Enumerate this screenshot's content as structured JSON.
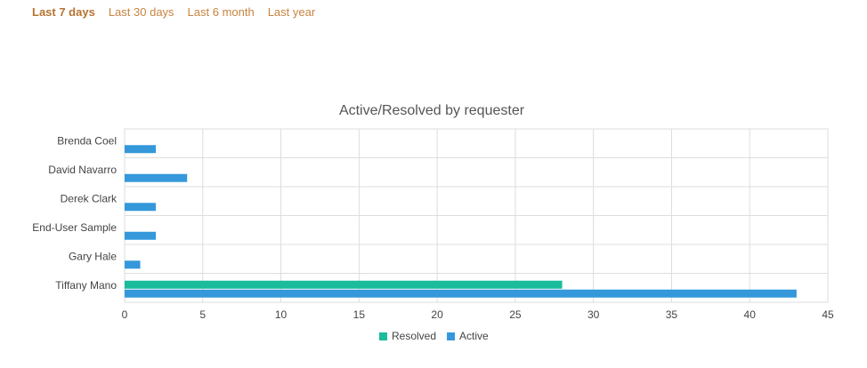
{
  "tabs": [
    "Last 7 days",
    "Last 30 days",
    "Last 6 month",
    "Last year"
  ],
  "chart_data": {
    "type": "hbar",
    "title": "Active/Resolved by requester",
    "categories": [
      "Brenda Coel",
      "David Navarro",
      "Derek Clark",
      "End-User Sample",
      "Gary Hale",
      "Tiffany Mano"
    ],
    "series": [
      {
        "name": "Resolved",
        "color": "#1abc9c",
        "values": [
          0,
          0,
          0,
          0,
          0,
          28
        ]
      },
      {
        "name": "Active",
        "color": "#3498db",
        "values": [
          2,
          4,
          2,
          2,
          1,
          43
        ]
      }
    ],
    "xlim": [
      0,
      45
    ],
    "xticks": [
      0,
      5,
      10,
      15,
      20,
      25,
      30,
      35,
      40,
      45
    ],
    "grid": true,
    "legend": "bottom"
  }
}
